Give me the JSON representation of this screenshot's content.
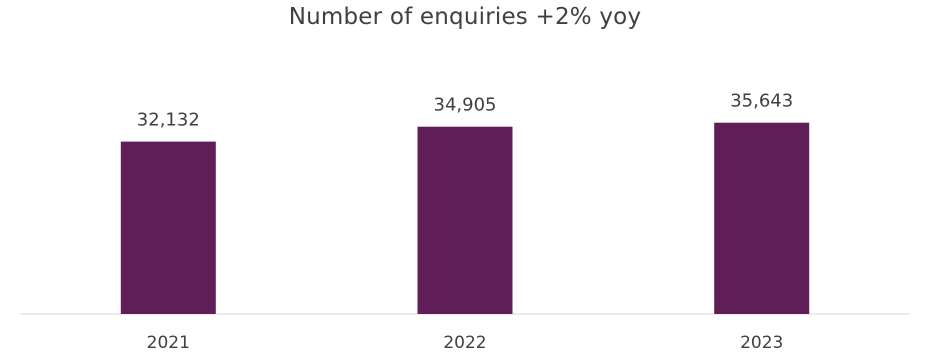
{
  "chart_data": {
    "type": "bar",
    "title": "Number of enquiries +2% yoy",
    "categories": [
      "2021",
      "2022",
      "2023"
    ],
    "values": [
      32132,
      34905,
      35643
    ],
    "value_labels": [
      "32,132",
      "34,905",
      "35,643"
    ],
    "xlabel": "",
    "ylabel": "",
    "ylim": [
      0,
      41000
    ],
    "grid": false,
    "legend": "none",
    "colors": {
      "bar": "#5f1e58",
      "axis": "#d9d9d9",
      "text": "#404040"
    }
  }
}
